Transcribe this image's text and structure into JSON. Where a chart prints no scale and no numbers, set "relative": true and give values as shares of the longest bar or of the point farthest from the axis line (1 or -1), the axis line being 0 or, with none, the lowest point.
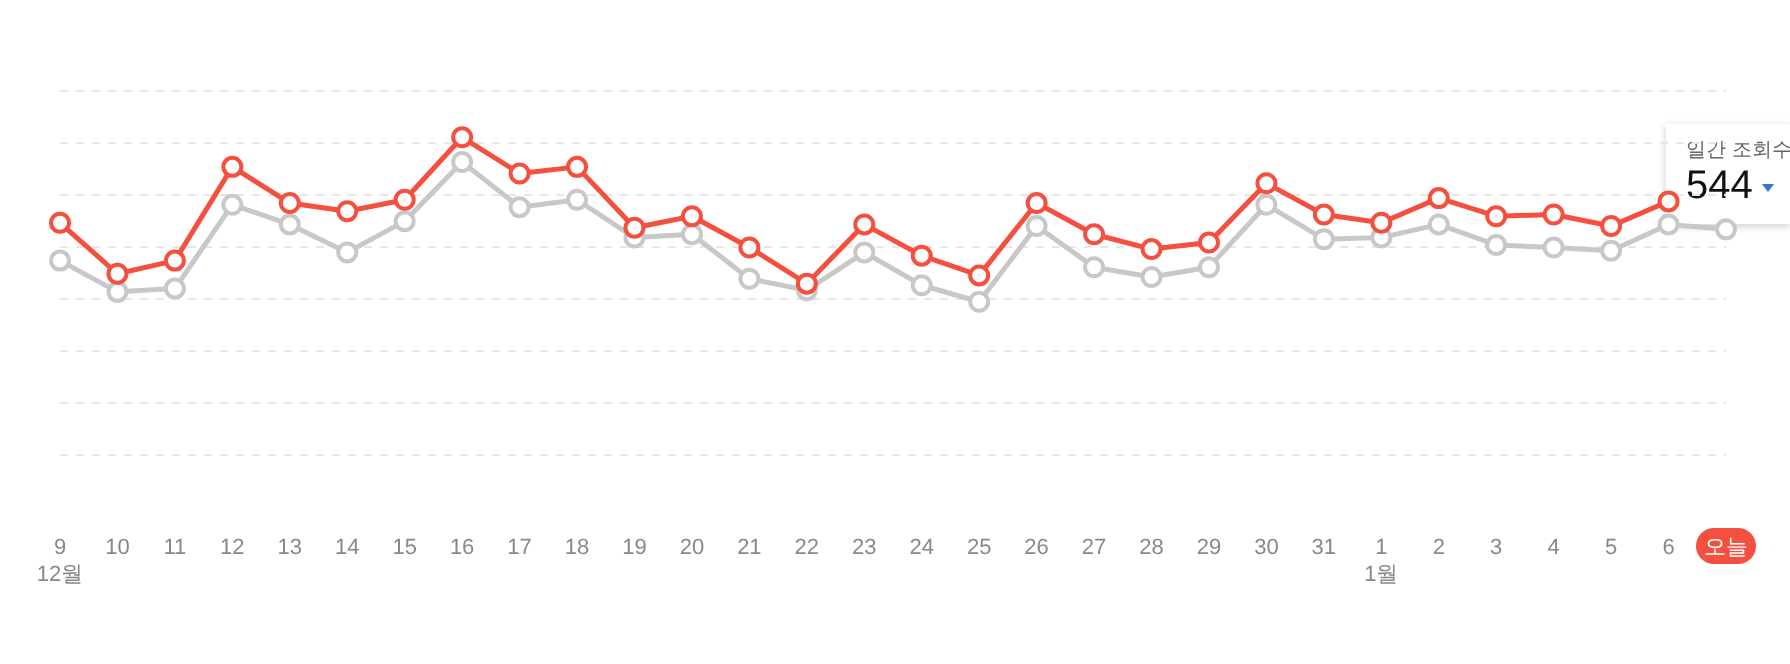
{
  "chart_data": {
    "type": "line",
    "relative": true,
    "categories": [
      "9\n12월",
      "10",
      "11",
      "12",
      "13",
      "14",
      "15",
      "16",
      "17",
      "18",
      "19",
      "20",
      "21",
      "22",
      "23",
      "24",
      "25",
      "26",
      "27",
      "28",
      "29",
      "30",
      "31",
      "1\n1월",
      "2",
      "3",
      "4",
      "5",
      "6",
      "오늘"
    ],
    "series": [
      {
        "color": "#c8c8c8",
        "values": [
          0.25,
          0.06,
          0.08,
          0.59,
          0.47,
          0.3,
          0.49,
          0.85,
          0.575,
          0.62,
          0.39,
          0.41,
          0.14,
          0.07,
          0.3,
          0.1,
          0,
          0.46,
          0.21,
          0.15,
          0.21,
          0.59,
          0.38,
          0.39,
          0.47,
          0.345,
          0.33,
          0.31,
          0.47,
          0.44
        ]
      },
      {
        "color": "#f5503f",
        "values": [
          0.48,
          0.17,
          0.25,
          0.82,
          0.6,
          0.55,
          0.62,
          1,
          0.78,
          0.82,
          0.45,
          0.52,
          0.33,
          0.11,
          0.47,
          0.28,
          0.16,
          0.6,
          0.41,
          0.32,
          0.36,
          0.72,
          0.53,
          0.48,
          0.63,
          0.52,
          0.53,
          0.46,
          0.61,
          null
        ]
      }
    ],
    "marker": "circle",
    "grid": "y",
    "annotations": [
      "일간 조회수",
      "544"
    ]
  }
}
